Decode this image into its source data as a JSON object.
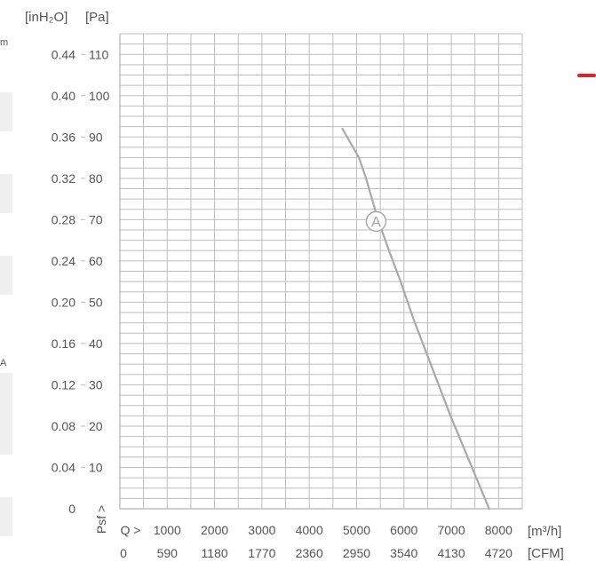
{
  "chart_data": {
    "type": "line",
    "y_units": {
      "inh2o": "[inH₂O]",
      "pa": "[Pa]"
    },
    "y_ticks_pa": [
      "110",
      "100",
      "90",
      "80",
      "70",
      "60",
      "50",
      "40",
      "30",
      "20",
      "10"
    ],
    "y_ticks_inh2o": [
      "0.44",
      "0.40",
      "0.36",
      "0.32",
      "0.28",
      "0.24",
      "0.20",
      "0.16",
      "0.12",
      "0.08",
      "0.04",
      "0"
    ],
    "x_ticks_m3h": [
      "1000",
      "2000",
      "3000",
      "4000",
      "5000",
      "6000",
      "7000",
      "8000"
    ],
    "x_ticks_cfm": [
      "0",
      "590",
      "1180",
      "1770",
      "2360",
      "2950",
      "3540",
      "4130",
      "4720"
    ],
    "x_unit_m3h": "[m³/h]",
    "x_unit_cfm": "[CFM]",
    "q_label": "Q >",
    "psf_label": "Psf >",
    "xlim": [
      0,
      8500
    ],
    "ylim": [
      0,
      115
    ],
    "grid": true,
    "series": [
      {
        "label": "A",
        "x": [
          4700,
          5050,
          5200,
          5450,
          5700,
          5900,
          6200,
          6600,
          7000,
          7400,
          7800
        ],
        "y": [
          92,
          85,
          80,
          70,
          62,
          56,
          46,
          34,
          22,
          11,
          0
        ]
      }
    ]
  },
  "colors": {
    "grid": "#bdbdbd",
    "curve": "#a9a9a9",
    "text": "#555555",
    "accent": "#d7262b"
  },
  "left_strip": {
    "top_label": "m",
    "mid_label": "A"
  }
}
